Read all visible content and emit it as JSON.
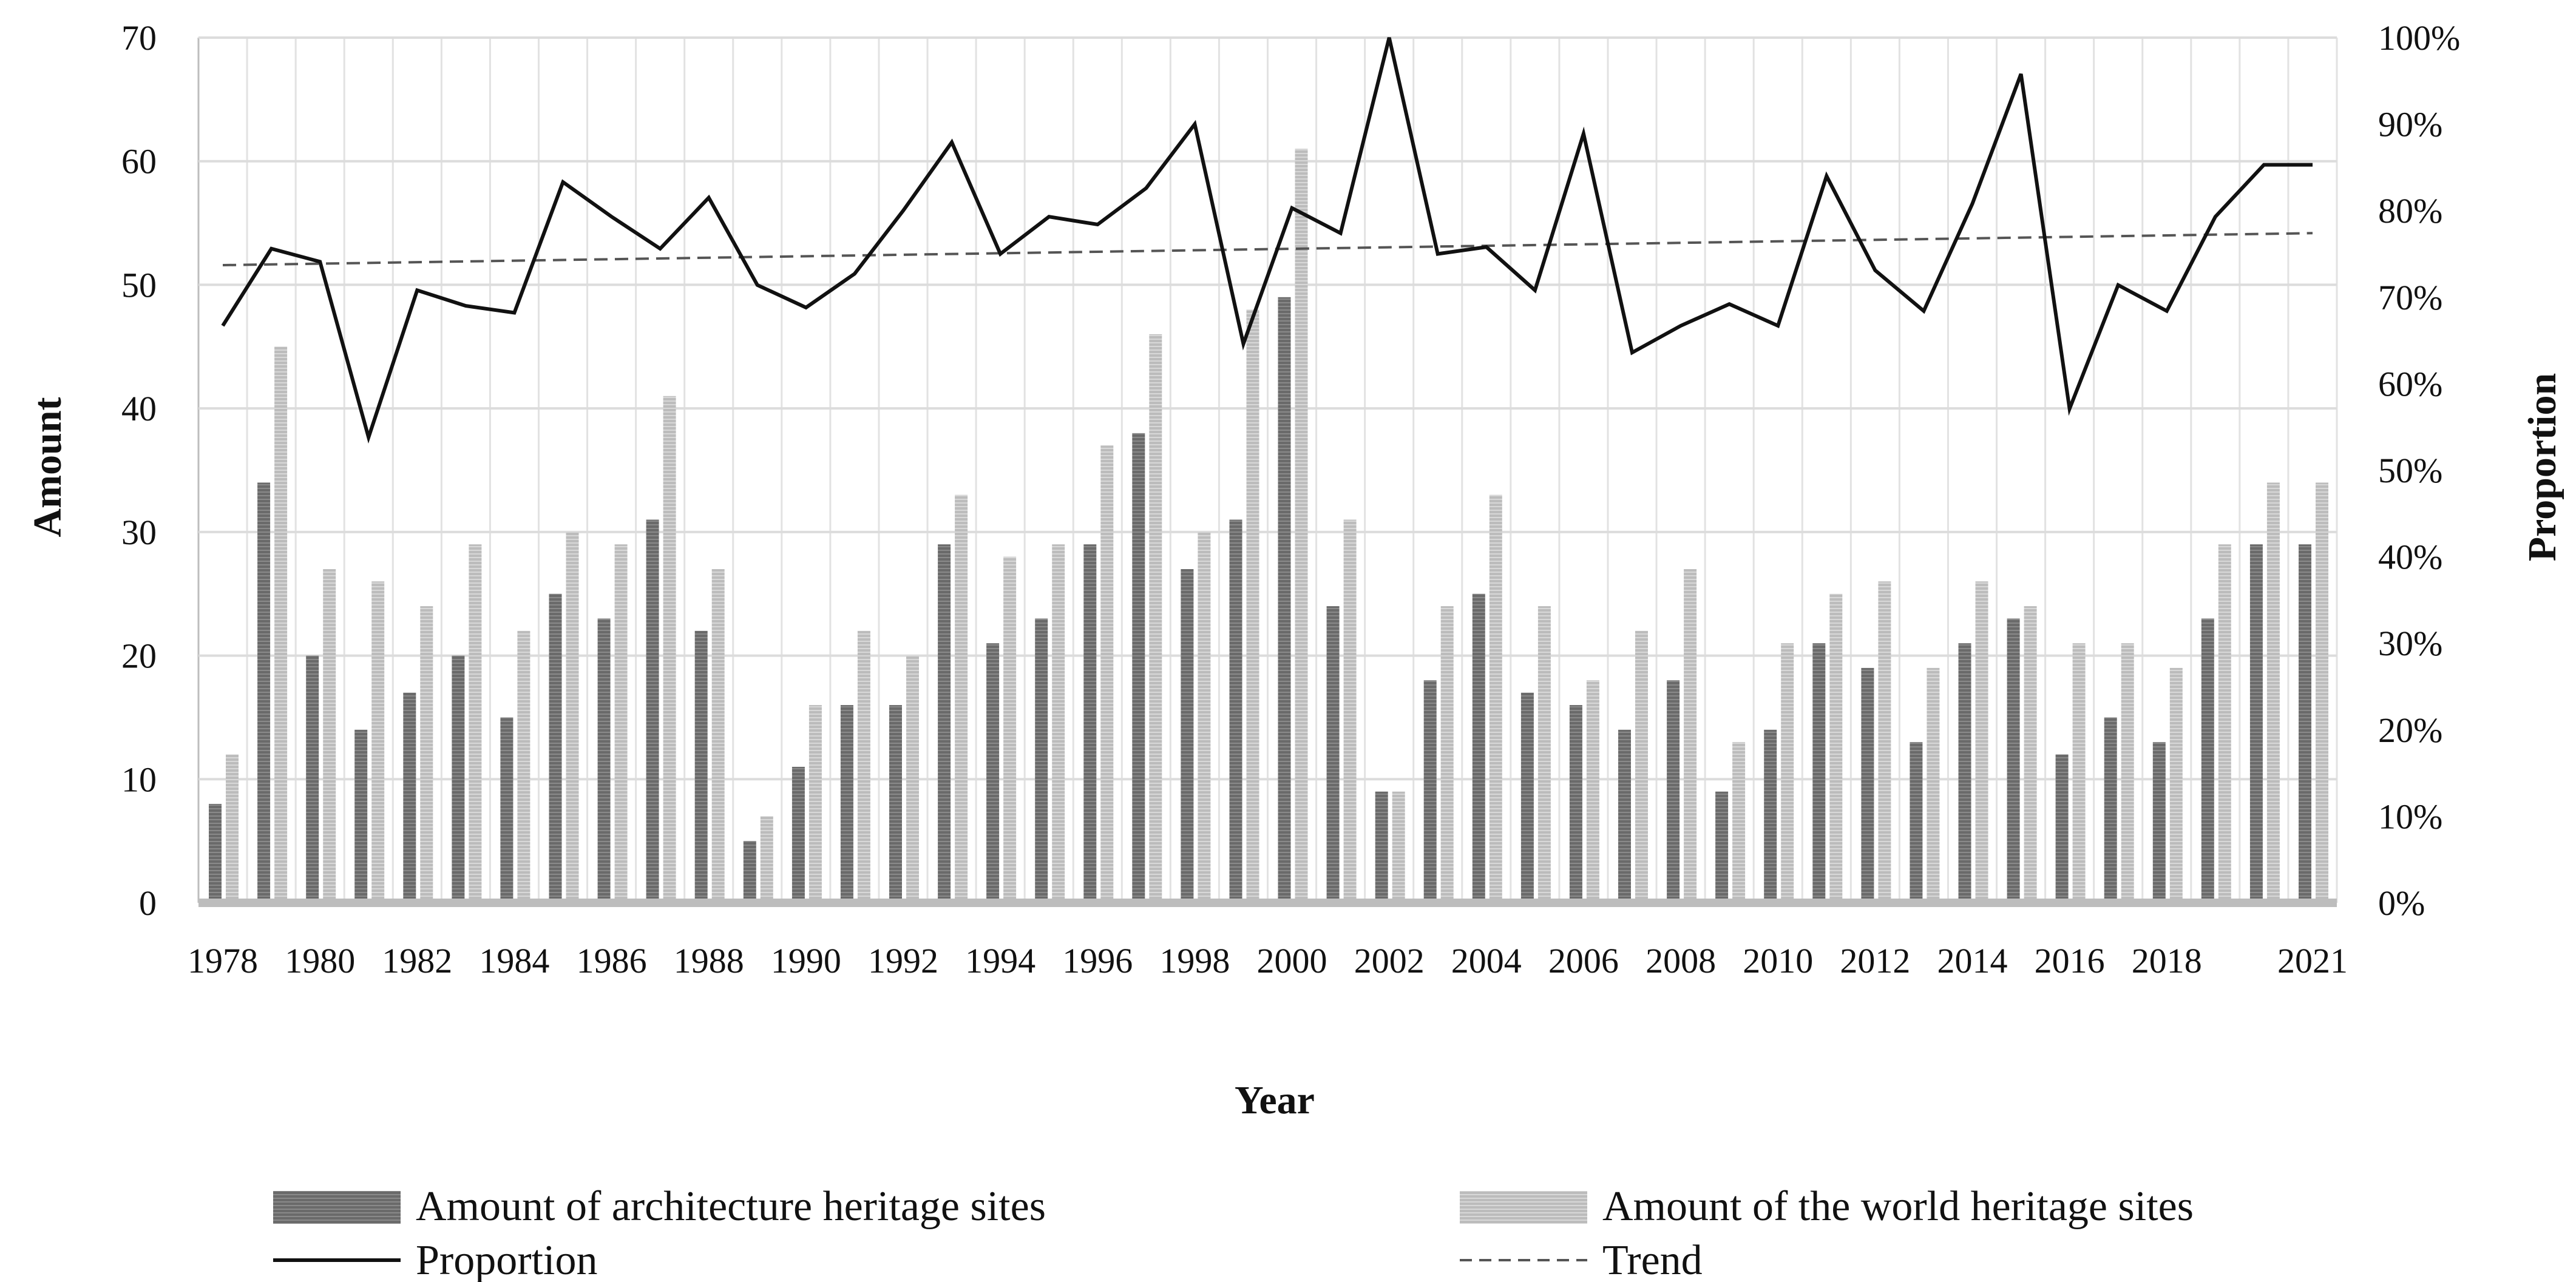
{
  "chart_data": {
    "type": "bar",
    "title": "",
    "xlabel": "Year",
    "ylabel": "Amount",
    "y2label": "Proportion",
    "ylim": [
      0,
      70
    ],
    "y2lim": [
      0,
      1
    ],
    "y_ticks": [
      "0",
      "10",
      "20",
      "30",
      "40",
      "50",
      "60",
      "70"
    ],
    "y2_ticks": [
      "0%",
      "10%",
      "20%",
      "30%",
      "40%",
      "50%",
      "60%",
      "70%",
      "80%",
      "90%",
      "100%"
    ],
    "grid": true,
    "legend_position": "bottom",
    "categories": [
      "1978",
      "1979",
      "1980",
      "1981",
      "1982",
      "1983",
      "1984",
      "1985",
      "1986",
      "1987",
      "1988",
      "1989",
      "1990",
      "1991",
      "1992",
      "1993",
      "1994",
      "1995",
      "1996",
      "1997",
      "1998",
      "1999",
      "2000",
      "2001",
      "2002",
      "2003",
      "2004",
      "2005",
      "2006",
      "2007",
      "2008",
      "2009",
      "2010",
      "2011",
      "2012",
      "2013",
      "2014",
      "2015",
      "2016",
      "2017",
      "2018",
      "2019",
      "2020",
      "2021"
    ],
    "x_tick_labels": [
      "1978",
      "1980",
      "1982",
      "1984",
      "1986",
      "1988",
      "1990",
      "1992",
      "1994",
      "1996",
      "1998",
      "2000",
      "2002",
      "2004",
      "2006",
      "2008",
      "2010",
      "2012",
      "2014",
      "2016",
      "2018",
      "2021"
    ],
    "series": [
      {
        "name": "Amount of architecture heritage sites",
        "kind": "bar",
        "axis": "left",
        "color": "#6e6e6e",
        "values": [
          8,
          34,
          20,
          14,
          17,
          20,
          15,
          25,
          23,
          31,
          22,
          5,
          11,
          16,
          16,
          29,
          21,
          23,
          29,
          38,
          27,
          31,
          49,
          24,
          9,
          18,
          25,
          17,
          16,
          14,
          18,
          9,
          14,
          21,
          19,
          13,
          21,
          23,
          12,
          15,
          13,
          23,
          29,
          29
        ]
      },
      {
        "name": "Amount of the world heritage sites",
        "kind": "bar",
        "axis": "left",
        "color": "#bdbdbd",
        "values": [
          12,
          45,
          27,
          26,
          24,
          29,
          22,
          30,
          29,
          41,
          27,
          7,
          16,
          22,
          20,
          33,
          28,
          29,
          37,
          46,
          30,
          48,
          61,
          31,
          9,
          24,
          33,
          24,
          18,
          22,
          27,
          13,
          21,
          25,
          26,
          19,
          26,
          24,
          21,
          21,
          19,
          29,
          34,
          34
        ]
      },
      {
        "name": "Proportion",
        "kind": "line",
        "axis": "right",
        "color": "#111111",
        "values": [
          0.667,
          0.756,
          0.741,
          0.538,
          0.708,
          0.69,
          0.682,
          0.833,
          0.793,
          0.756,
          0.815,
          0.714,
          0.688,
          0.727,
          0.8,
          0.879,
          0.75,
          0.793,
          0.784,
          0.826,
          0.9,
          0.646,
          0.803,
          0.774,
          1.0,
          0.75,
          0.758,
          0.708,
          0.889,
          0.636,
          0.667,
          0.692,
          0.667,
          0.84,
          0.731,
          0.684,
          0.808,
          0.958,
          0.571,
          0.714,
          0.684,
          0.793,
          0.853,
          0.853
        ]
      },
      {
        "name": "Trend",
        "kind": "trendline",
        "axis": "right",
        "color": "#555555",
        "start": 0.737,
        "end": 0.774
      }
    ]
  },
  "legend": {
    "items": [
      {
        "label": "Amount of architecture heritage sites",
        "style": "bar-dark"
      },
      {
        "label": "Amount of the world heritage sites",
        "style": "bar-light"
      },
      {
        "label": "Proportion",
        "style": "line-solid"
      },
      {
        "label": "Trend",
        "style": "line-dashed"
      }
    ]
  }
}
